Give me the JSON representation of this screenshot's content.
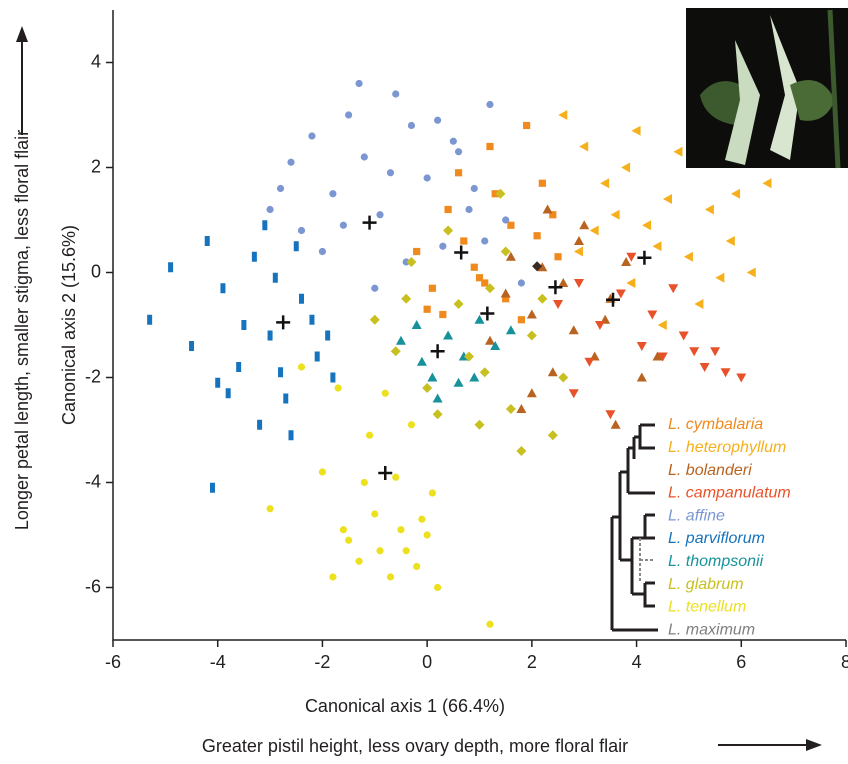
{
  "chart_data": {
    "type": "scatter",
    "x_label": "Canonical axis 1  (66.4%)",
    "y_label": "Canonical axis 2 (15.6%)",
    "x_direction_label": "Greater pistil height, less ovary depth, more floral flair",
    "y_direction_label": "Longer petal length, smaller stigma, less floral flair",
    "xlim": [
      -6,
      8
    ],
    "ylim": [
      -7,
      5
    ],
    "xticks": [
      -6,
      -4,
      -2,
      0,
      2,
      4,
      6,
      8
    ],
    "yticks": [
      -6,
      -4,
      -2,
      0,
      2,
      4
    ],
    "series": [
      {
        "name": "L. cymbalaria",
        "color": "#f08a1e",
        "marker": "square",
        "x": [
          -0.2,
          0.1,
          0.4,
          0.7,
          1.0,
          1.3,
          1.6,
          1.9,
          2.2,
          2.5,
          0.3,
          0.9,
          1.5,
          2.1,
          0.6,
          1.2,
          1.8,
          2.4,
          0.0,
          1.1
        ],
        "y": [
          0.4,
          -0.3,
          1.2,
          0.6,
          -0.1,
          1.5,
          0.9,
          2.8,
          1.7,
          0.3,
          -0.8,
          0.1,
          -0.5,
          0.7,
          1.9,
          2.4,
          -0.9,
          1.1,
          -0.7,
          -0.2
        ],
        "centroid": [
          0.65,
          0.38
        ]
      },
      {
        "name": "L. heterophyllum",
        "color": "#f5b01c",
        "marker": "triangle-left",
        "x": [
          2.6,
          3.0,
          3.4,
          3.8,
          4.2,
          4.6,
          5.0,
          5.4,
          5.8,
          6.2,
          6.5,
          3.2,
          3.9,
          4.4,
          5.2,
          4.8,
          5.6,
          4.0,
          3.6,
          2.9,
          4.5,
          5.9
        ],
        "y": [
          3.0,
          2.4,
          1.7,
          2.0,
          0.9,
          1.4,
          0.3,
          1.2,
          0.6,
          0.0,
          1.7,
          0.8,
          -0.2,
          0.5,
          -0.6,
          2.3,
          -0.1,
          2.7,
          1.1,
          0.4,
          -1.0,
          1.5
        ],
        "centroid": [
          4.15,
          0.28
        ]
      },
      {
        "name": "L. bolanderi",
        "color": "#b8631f",
        "marker": "triangle-up",
        "x": [
          1.2,
          1.6,
          2.0,
          2.3,
          2.6,
          2.9,
          3.2,
          3.5,
          3.8,
          4.1,
          1.8,
          2.4,
          3.0,
          3.6,
          2.2,
          2.8,
          4.4,
          1.5,
          3.4,
          2.0
        ],
        "y": [
          -1.3,
          0.3,
          -0.8,
          1.2,
          -0.2,
          0.6,
          -1.6,
          -0.5,
          0.2,
          -2.0,
          -2.6,
          -1.9,
          0.9,
          -2.9,
          0.1,
          -1.1,
          -1.6,
          -0.4,
          -0.9,
          -2.3
        ],
        "centroid": [
          2.45,
          -0.28
        ]
      },
      {
        "name": "L. campanulatum",
        "color": "#e8522a",
        "marker": "triangle-down",
        "x": [
          2.5,
          2.9,
          3.3,
          3.7,
          4.1,
          4.5,
          4.9,
          5.3,
          5.7,
          6.0,
          3.5,
          4.3,
          5.1,
          3.9,
          4.7,
          2.8,
          3.1,
          5.5
        ],
        "y": [
          -0.6,
          -0.2,
          -1.0,
          -0.4,
          -1.4,
          -1.6,
          -1.2,
          -1.8,
          -1.9,
          -2.0,
          -2.7,
          -0.8,
          -1.5,
          0.3,
          -0.3,
          -2.3,
          -1.7,
          -1.5
        ],
        "centroid": [
          3.55,
          -0.52
        ]
      },
      {
        "name": "L. affine",
        "color": "#7b96d0",
        "marker": "circle",
        "x": [
          -2.6,
          -2.2,
          -1.8,
          -1.5,
          -1.2,
          -0.9,
          -0.6,
          -0.3,
          0,
          0.3,
          0.6,
          0.9,
          1.2,
          -2.0,
          -1.6,
          -1.0,
          -0.4,
          0.2,
          0.8,
          1.1,
          -2.8,
          -1.3,
          -0.7,
          0.5,
          1.5,
          -3.0,
          -2.4,
          1.8
        ],
        "y": [
          2.1,
          2.6,
          1.5,
          3.0,
          2.2,
          1.1,
          3.4,
          2.8,
          1.8,
          0.5,
          2.3,
          1.6,
          3.2,
          0.4,
          0.9,
          -0.3,
          0.2,
          2.9,
          1.2,
          0.6,
          1.6,
          3.6,
          1.9,
          2.5,
          1.0,
          1.2,
          0.8,
          -0.2
        ],
        "centroid": [
          -1.1,
          0.95
        ]
      },
      {
        "name": "L. parviflorum",
        "color": "#1673bd",
        "marker": "rect",
        "x": [
          -5.3,
          -4.9,
          -4.5,
          -4.2,
          -3.9,
          -3.6,
          -3.3,
          -3.0,
          -2.7,
          -2.4,
          -2.1,
          -1.8,
          -3.8,
          -3.2,
          -2.9,
          -2.5,
          -2.2,
          -3.5,
          -4.0,
          -2.6,
          -1.9,
          -3.1,
          -4.1,
          -2.8
        ],
        "y": [
          -0.9,
          0.1,
          -1.4,
          0.6,
          -0.3,
          -1.8,
          0.3,
          -1.2,
          -2.4,
          -0.5,
          -1.6,
          -2.0,
          -2.3,
          -2.9,
          -0.1,
          0.5,
          -0.9,
          -1.0,
          -2.1,
          -3.1,
          -1.2,
          0.9,
          -4.1,
          -1.9
        ],
        "centroid": [
          -2.75,
          -0.95
        ]
      },
      {
        "name": "L. thompsonii",
        "color": "#17929b",
        "marker": "triangle-up",
        "x": [
          -0.5,
          -0.2,
          0.1,
          0.4,
          0.7,
          1.0,
          1.3,
          0.2,
          0.6,
          -0.1,
          0.9,
          1.6
        ],
        "y": [
          -1.3,
          -1.0,
          -2.0,
          -1.2,
          -1.6,
          -0.9,
          -1.4,
          -2.4,
          -2.1,
          -1.7,
          -2.0,
          -1.1
        ],
        "centroid": [
          0.2,
          -1.5
        ]
      },
      {
        "name": "L. glabrum",
        "color": "#c8c020",
        "marker": "diamond",
        "x": [
          -1.0,
          -0.6,
          -0.3,
          0.0,
          0.4,
          0.8,
          1.2,
          1.6,
          2.0,
          2.4,
          1.0,
          1.4,
          0.6,
          1.8,
          2.2,
          0.2,
          1.1,
          -0.4,
          2.6,
          1.5
        ],
        "y": [
          -0.9,
          -1.5,
          0.2,
          -2.2,
          0.8,
          -1.6,
          -0.3,
          -2.6,
          -1.2,
          -3.1,
          -2.9,
          1.5,
          -0.6,
          -3.4,
          -0.5,
          -2.7,
          -1.9,
          -0.5,
          -2.0,
          0.4
        ],
        "centroid": [
          1.15,
          -0.78
        ]
      },
      {
        "name": "L. tenellum",
        "color": "#ece01f",
        "marker": "circle",
        "x": [
          -2.4,
          -2.0,
          -1.6,
          -1.3,
          -1.0,
          -0.7,
          -0.4,
          -0.1,
          0.2,
          -1.5,
          -1.1,
          -0.8,
          -0.5,
          -0.2,
          -1.8,
          -0.3,
          0.1,
          -0.9,
          -1.2,
          1.2,
          -1.7,
          -0.6,
          -3.0,
          0.0
        ],
        "y": [
          -1.8,
          -3.8,
          -4.9,
          -5.5,
          -4.6,
          -5.8,
          -5.3,
          -4.7,
          -6.0,
          -5.1,
          -3.1,
          -2.3,
          -4.9,
          -5.6,
          -5.8,
          -2.9,
          -4.2,
          -5.3,
          -4.0,
          -6.7,
          -2.2,
          -3.9,
          -4.5,
          -5.0
        ],
        "centroid": [
          -0.8,
          -3.82
        ]
      },
      {
        "name": "L. maximum",
        "color": "#808080",
        "marker": "diamond",
        "marker_color": "#3a2a22",
        "x": [
          2.1
        ],
        "y": [
          0.12
        ]
      }
    ]
  }
}
